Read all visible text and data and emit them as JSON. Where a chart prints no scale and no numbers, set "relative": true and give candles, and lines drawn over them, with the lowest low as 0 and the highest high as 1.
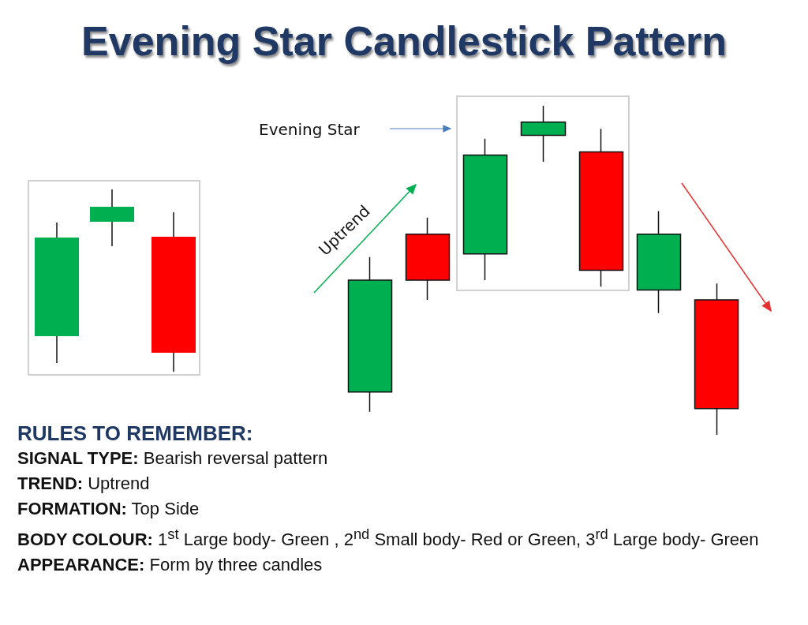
{
  "chart_data": {
    "type": "candlestick",
    "relative": true,
    "title": "Evening Star Candlestick Pattern",
    "categories": [
      null,
      null,
      null,
      null,
      null,
      null,
      null
    ],
    "ohlc": [
      [
        0.13,
        0.54,
        0.07,
        0.47
      ],
      [
        0.61,
        0.66,
        0.41,
        0.47
      ],
      [
        0.55,
        0.9,
        0.47,
        0.85
      ],
      [
        0.91,
        1,
        0.83,
        0.95
      ],
      [
        0.86,
        0.93,
        0.45,
        0.5
      ],
      [
        0.44,
        0.68,
        0.37,
        0.61
      ],
      [
        0.41,
        0.46,
        0,
        0.08
      ]
    ],
    "colors": [
      "#00b050",
      "#ff0000",
      "#00b050",
      "#00b050",
      "#ff0000",
      "#00b050",
      "#ff0000"
    ],
    "annotations": [
      "Evening Star",
      "Uptrend",
      "RULES TO REMEMBER:",
      "SIGNAL TYPE: Bearish reversal pattern",
      "TREND: Uptrend",
      "FORMATION: Top Side",
      "BODY COLOUR: 1$^{st}$  Large body- Green , 2$^{nd}$  Small body- Red or Green, 3$^{rd}$ Large body- Green",
      "APPEARANCE: Form by three candles"
    ]
  }
}
